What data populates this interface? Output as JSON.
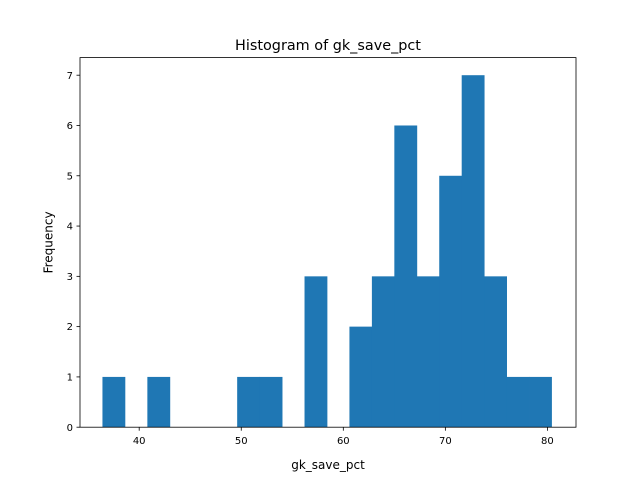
{
  "chart_data": {
    "type": "bar",
    "title": "Histogram of gk_save_pct",
    "xlabel": "gk_save_pct",
    "ylabel": "Frequency",
    "bar_color": "#1f77b4",
    "grid": false,
    "legend": "none",
    "xlim": [
      34.2,
      82.8
    ],
    "ylim": [
      0,
      7.35
    ],
    "x_ticks": [
      40,
      50,
      60,
      70,
      80
    ],
    "y_ticks": [
      0,
      1,
      2,
      3,
      4,
      5,
      6,
      7
    ],
    "bin_edges": [
      36.4,
      38.6,
      40.8,
      43.0,
      45.2,
      47.4,
      49.6,
      51.8,
      54.0,
      56.2,
      58.4,
      60.6,
      62.8,
      65.0,
      67.2,
      69.4,
      71.6,
      73.8,
      76.0,
      78.2,
      80.4
    ],
    "counts": [
      1,
      0,
      1,
      0,
      0,
      0,
      1,
      1,
      0,
      3,
      0,
      2,
      3,
      6,
      3,
      5,
      7,
      3,
      1,
      1
    ]
  }
}
